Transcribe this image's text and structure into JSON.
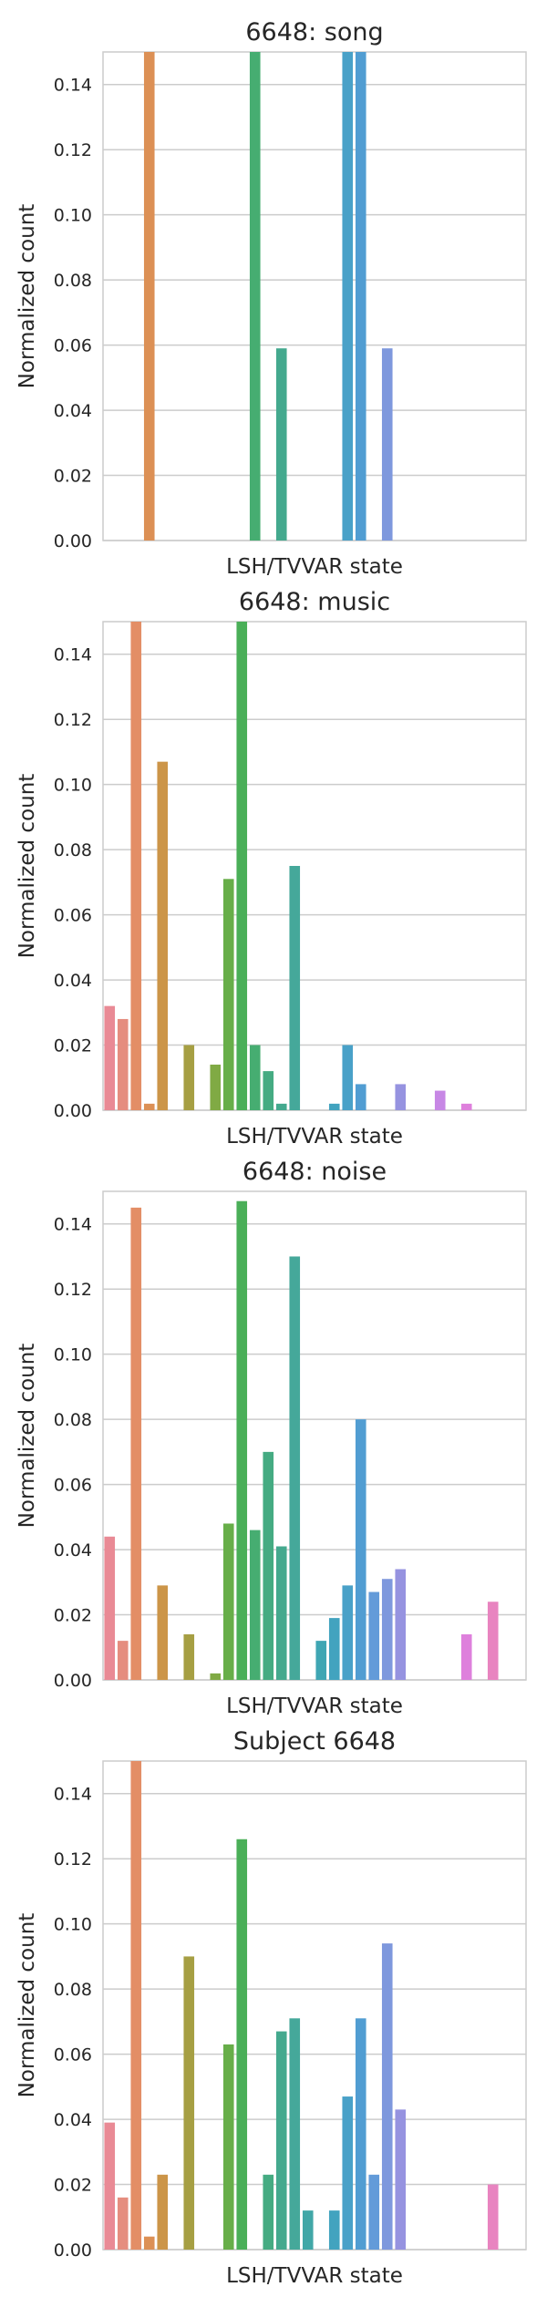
{
  "chart_data": [
    {
      "type": "bar",
      "title": "6648: song",
      "xlabel": "LSH/TVVAR state",
      "ylabel": "Normalized count",
      "ylim": [
        0,
        0.15
      ],
      "yticks": [
        "0.00",
        "0.02",
        "0.04",
        "0.06",
        "0.08",
        "0.10",
        "0.12",
        "0.14"
      ],
      "grid": true,
      "values": [
        0,
        0,
        0,
        0.15,
        0,
        0,
        0,
        0,
        0,
        0,
        0,
        0.15,
        0,
        0.059,
        0,
        0,
        0,
        0,
        0.15,
        0.15,
        0,
        0.059,
        0,
        0,
        0,
        0,
        0,
        0,
        0,
        0,
        0,
        0
      ]
    },
    {
      "type": "bar",
      "title": "6648: music",
      "xlabel": "LSH/TVVAR state",
      "ylabel": "Normalized count",
      "ylim": [
        0,
        0.15
      ],
      "yticks": [
        "0.00",
        "0.02",
        "0.04",
        "0.06",
        "0.08",
        "0.10",
        "0.12",
        "0.14"
      ],
      "grid": true,
      "values": [
        0.032,
        0.028,
        0.15,
        0.002,
        0.107,
        0,
        0.02,
        0,
        0.014,
        0.071,
        0.15,
        0.02,
        0.012,
        0.002,
        0.075,
        0,
        0,
        0.002,
        0.02,
        0.008,
        0,
        0,
        0.008,
        0,
        0,
        0.006,
        0,
        0.002,
        0,
        0,
        0,
        0
      ]
    },
    {
      "type": "bar",
      "title": "6648: noise",
      "xlabel": "LSH/TVVAR state",
      "ylabel": "Normalized count",
      "ylim": [
        0,
        0.15
      ],
      "yticks": [
        "0.00",
        "0.02",
        "0.04",
        "0.06",
        "0.08",
        "0.10",
        "0.12",
        "0.14"
      ],
      "grid": true,
      "values": [
        0.044,
        0.012,
        0.145,
        0,
        0.029,
        0,
        0.014,
        0,
        0.002,
        0.048,
        0.147,
        0.046,
        0.07,
        0.041,
        0.13,
        0,
        0.012,
        0.019,
        0.029,
        0.08,
        0.027,
        0.031,
        0.034,
        0,
        0,
        0,
        0,
        0.014,
        0,
        0.024,
        0,
        0
      ]
    },
    {
      "type": "bar",
      "title": "Subject 6648",
      "xlabel": "LSH/TVVAR state",
      "ylabel": "Normalized count",
      "ylim": [
        0,
        0.15
      ],
      "yticks": [
        "0.00",
        "0.02",
        "0.04",
        "0.06",
        "0.08",
        "0.10",
        "0.12",
        "0.14"
      ],
      "grid": true,
      "values": [
        0.039,
        0.016,
        0.15,
        0.004,
        0.023,
        0,
        0.09,
        0,
        0,
        0.063,
        0.126,
        0,
        0.023,
        0.067,
        0.071,
        0.012,
        0,
        0.012,
        0.047,
        0.071,
        0.023,
        0.094,
        0.043,
        0,
        0,
        0,
        0,
        0,
        0,
        0.02,
        0,
        0
      ]
    }
  ],
  "bar_colors": [
    "#e98a95",
    "#e58d7f",
    "#e38e66",
    "#dc9055",
    "#cc9548",
    "#b99b43",
    "#a69f43",
    "#94a543",
    "#80aa44",
    "#67ae49",
    "#4aaf58",
    "#46ad71",
    "#45ab82",
    "#44a98e",
    "#45a89a",
    "#41a7a7",
    "#3fa6b3",
    "#42a3bf",
    "#49a1c8",
    "#519dd2",
    "#639bd9",
    "#7e98dd",
    "#9693e0",
    "#a890e3",
    "#b98be5",
    "#c787e5",
    "#d383e3",
    "#de80dc",
    "#e583d0",
    "#e884c0",
    "#ea86b0",
    "#eb88a2"
  ]
}
